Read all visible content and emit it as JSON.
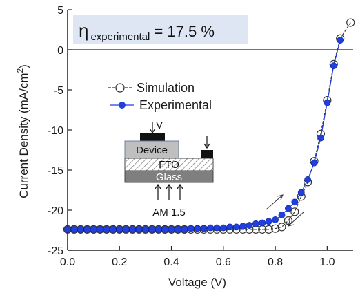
{
  "chart_data": {
    "type": "scatter",
    "title": "",
    "xlabel": "Voltage (V)",
    "ylabel": "Current Density (mA/cm",
    "ylabel_superscript": "2",
    "ylabel_close": ")",
    "xlim": [
      0.0,
      1.1
    ],
    "ylim": [
      -25,
      5
    ],
    "x_ticks": [
      "0.0",
      "0.2",
      "0.4",
      "0.6",
      "0.8",
      "1.0"
    ],
    "x_tick_values": [
      0.0,
      0.2,
      0.4,
      0.6,
      0.8,
      1.0
    ],
    "y_ticks": [
      "5",
      "0",
      "-5",
      "-10",
      "-15",
      "-20",
      "-25"
    ],
    "y_tick_values": [
      5,
      0,
      -5,
      -10,
      -15,
      -20,
      -25
    ],
    "grid": false,
    "legend_position": "upper-left",
    "annotation": {
      "eta_symbol": "η",
      "eta_subscript": "experimental",
      "eta_value": " = 17.5 %"
    },
    "inset": {
      "device_label": "Device",
      "fto_label": "FTO",
      "glass_label": "Glass",
      "voltage_label": "V",
      "illumination_label": "AM 1.5"
    },
    "series": [
      {
        "name": "Simulation",
        "marker": "open-circle",
        "color": "#333333",
        "x": [
          0.0,
          0.025,
          0.05,
          0.075,
          0.1,
          0.125,
          0.15,
          0.175,
          0.2,
          0.225,
          0.25,
          0.275,
          0.3,
          0.325,
          0.35,
          0.375,
          0.4,
          0.425,
          0.45,
          0.475,
          0.5,
          0.525,
          0.55,
          0.575,
          0.6,
          0.625,
          0.65,
          0.675,
          0.7,
          0.725,
          0.75,
          0.775,
          0.8,
          0.825,
          0.85,
          0.875,
          0.9,
          0.925,
          0.95,
          0.975,
          1.0,
          1.025,
          1.05,
          1.09
        ],
        "y": [
          -22.4,
          -22.4,
          -22.4,
          -22.4,
          -22.4,
          -22.4,
          -22.4,
          -22.4,
          -22.4,
          -22.4,
          -22.4,
          -22.4,
          -22.4,
          -22.4,
          -22.4,
          -22.4,
          -22.4,
          -22.4,
          -22.4,
          -22.4,
          -22.4,
          -22.4,
          -22.4,
          -22.4,
          -22.4,
          -22.4,
          -22.4,
          -22.4,
          -22.4,
          -22.4,
          -22.4,
          -22.4,
          -22.3,
          -22.1,
          -21.3,
          -20.2,
          -18.3,
          -16.5,
          -13.9,
          -10.5,
          -6.3,
          -1.8,
          1.4,
          3.4
        ]
      },
      {
        "name": "Experimental",
        "marker": "filled-circle",
        "color": "#1f3fe0",
        "x": [
          0.0,
          0.025,
          0.05,
          0.075,
          0.1,
          0.125,
          0.15,
          0.175,
          0.2,
          0.225,
          0.25,
          0.275,
          0.3,
          0.325,
          0.35,
          0.375,
          0.4,
          0.425,
          0.45,
          0.475,
          0.5,
          0.525,
          0.55,
          0.575,
          0.6,
          0.625,
          0.65,
          0.675,
          0.7,
          0.725,
          0.75,
          0.775,
          0.8,
          0.825,
          0.85,
          0.875,
          0.9,
          0.925,
          0.95,
          0.975,
          1.0,
          1.025,
          1.05
        ],
        "y": [
          -22.4,
          -22.4,
          -22.4,
          -22.4,
          -22.4,
          -22.4,
          -22.4,
          -22.4,
          -22.4,
          -22.4,
          -22.4,
          -22.4,
          -22.4,
          -22.4,
          -22.4,
          -22.4,
          -22.4,
          -22.4,
          -22.4,
          -22.3,
          -22.3,
          -22.3,
          -22.2,
          -22.2,
          -22.2,
          -22.1,
          -22.1,
          -22.0,
          -21.9,
          -21.7,
          -21.6,
          -21.4,
          -21.2,
          -20.6,
          -19.8,
          -19.0,
          -17.8,
          -16.2,
          -14.1,
          -11.0,
          -6.6,
          -2.0,
          1.2
        ]
      }
    ]
  }
}
